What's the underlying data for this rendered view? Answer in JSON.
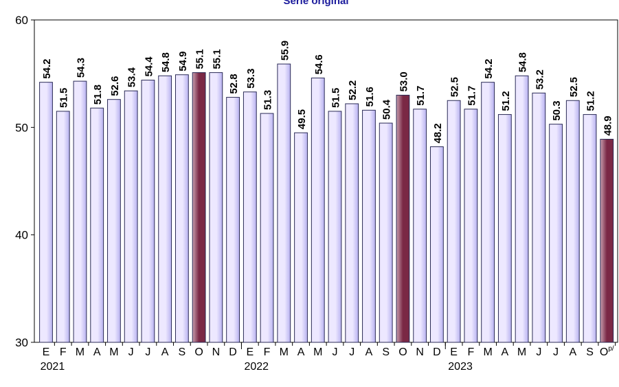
{
  "chart_data": {
    "type": "bar",
    "title": "Serie original",
    "ylim": [
      30,
      60
    ],
    "yticks": [
      "30",
      "40",
      "50",
      "60"
    ],
    "categories": [
      "E",
      "F",
      "M",
      "A",
      "M",
      "J",
      "J",
      "A",
      "S",
      "O",
      "N",
      "D",
      "E",
      "F",
      "M",
      "A",
      "M",
      "J",
      "J",
      "A",
      "S",
      "O",
      "N",
      "D",
      "E",
      "F",
      "M",
      "A",
      "M",
      "J",
      "J",
      "A",
      "S",
      "O"
    ],
    "last_category_suffix": "p/",
    "values": [
      54.2,
      51.5,
      54.3,
      51.8,
      52.6,
      53.4,
      54.4,
      54.8,
      54.9,
      55.1,
      55.1,
      52.8,
      53.3,
      51.3,
      55.9,
      49.5,
      54.6,
      51.5,
      52.2,
      51.6,
      50.4,
      53.0,
      51.7,
      48.2,
      52.5,
      51.7,
      54.2,
      51.2,
      54.8,
      53.2,
      50.3,
      52.5,
      51.2,
      48.9
    ],
    "value_labels": [
      "54.2",
      "51.5",
      "54.3",
      "51.8",
      "52.6",
      "53.4",
      "54.4",
      "54.8",
      "54.9",
      "55.1",
      "55.1",
      "52.8",
      "53.3",
      "51.3",
      "55.9",
      "49.5",
      "54.6",
      "51.5",
      "52.2",
      "51.6",
      "50.4",
      "53.0",
      "51.7",
      "48.2",
      "52.5",
      "51.7",
      "54.2",
      "51.2",
      "54.8",
      "53.2",
      "50.3",
      "52.5",
      "51.2",
      "48.9"
    ],
    "highlighted": [
      9,
      21,
      33
    ],
    "years": [
      {
        "label": "2021",
        "start_index": 0
      },
      {
        "label": "2022",
        "start_index": 12
      },
      {
        "label": "2023",
        "start_index": 24
      }
    ],
    "grid": false,
    "legend": "none",
    "colors": {
      "bar_fill_light": "#ede8ff",
      "bar_fill_dark": "#b8b2f0",
      "bar_highlight_light": "#c9a0b0",
      "bar_highlight_dark": "#7a2845",
      "bar_stroke": "#2a2a55",
      "title": "#1a1a9c",
      "axis": "#000000"
    }
  }
}
